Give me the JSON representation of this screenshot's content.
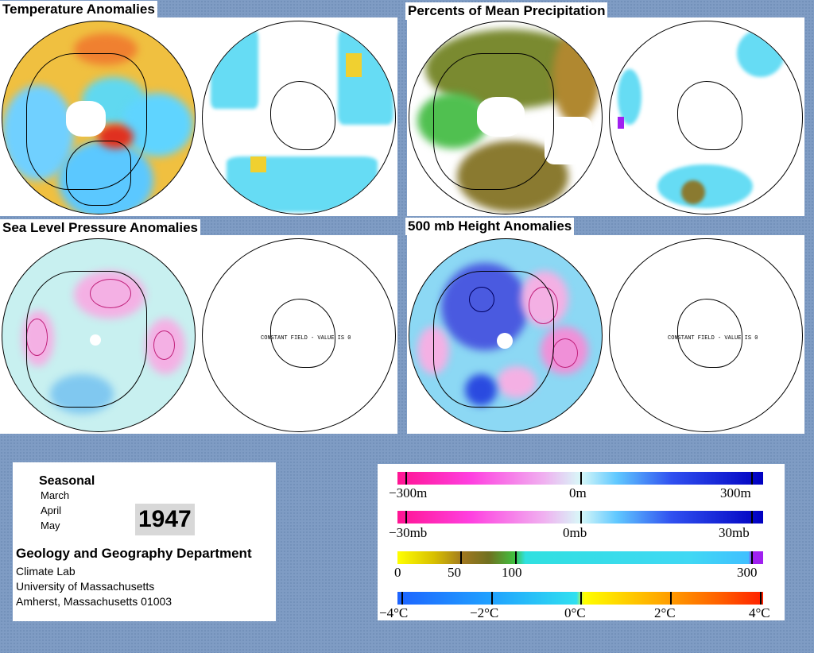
{
  "panels": {
    "temperature": {
      "title": "Temperature Anomalies"
    },
    "precipitation": {
      "title": "Percents of Mean Precipitation"
    },
    "sea_level_pressure": {
      "title": "Sea Level Pressure Anomalies",
      "note": "CONSTANT FIELD - VALUE IS 0"
    },
    "height_500mb": {
      "title": "500 mb Height Anomalies",
      "note": "CONSTANT FIELD - VALUE IS 0"
    }
  },
  "info": {
    "period_label": "Seasonal",
    "months": [
      "March",
      "April",
      "May"
    ],
    "year": "1947",
    "department": "Geology and Geography Department",
    "lab": "Climate Lab",
    "university": "University of Massachusetts",
    "address": "Amherst, Massachusetts 01003"
  },
  "legend": {
    "height": {
      "labels": [
        "−300m",
        "0m",
        "300m"
      ]
    },
    "pressure": {
      "labels": [
        "−30mb",
        "0mb",
        "30mb"
      ]
    },
    "precip": {
      "labels": [
        "0",
        "50",
        "100",
        "300"
      ]
    },
    "temp": {
      "labels": [
        "−4°C",
        "−2°C",
        "0°C",
        "2°C",
        "4°C"
      ]
    }
  },
  "colors": {
    "background": "#7f9cc4",
    "negative_anomaly": "#ff1493",
    "positive_anomaly": "#0000c0",
    "neutral": "#c8f0f0",
    "cold": "#1e64ff",
    "warm": "#ff3000",
    "dry": "#ffff00",
    "wet": "#a020f0"
  }
}
